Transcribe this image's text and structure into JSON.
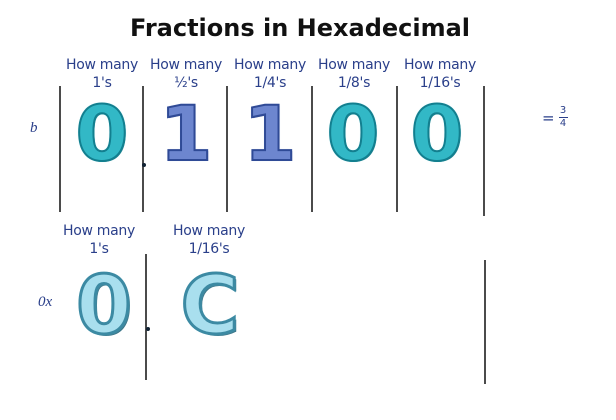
{
  "title": "Fractions in Hexadecimal",
  "binary": {
    "prefix": "b",
    "headers": [
      {
        "top": "How many",
        "bottom": "1's"
      },
      {
        "top": "How many",
        "bottom": "½'s"
      },
      {
        "top": "How many",
        "bottom": "1/4's"
      },
      {
        "top": "How many",
        "bottom": "1/8's"
      },
      {
        "top": "How many",
        "bottom": "1/16's"
      }
    ],
    "digits": [
      "0",
      "1",
      "1",
      "0",
      "0"
    ],
    "result": {
      "eq": "=",
      "numerator": "3",
      "denominator": "4"
    }
  },
  "hex": {
    "prefix": "0x",
    "headers": [
      {
        "top": "How many",
        "bottom": "1's"
      },
      {
        "top": "How many",
        "bottom": "1/16's"
      }
    ],
    "digits": [
      "0",
      "C"
    ]
  }
}
